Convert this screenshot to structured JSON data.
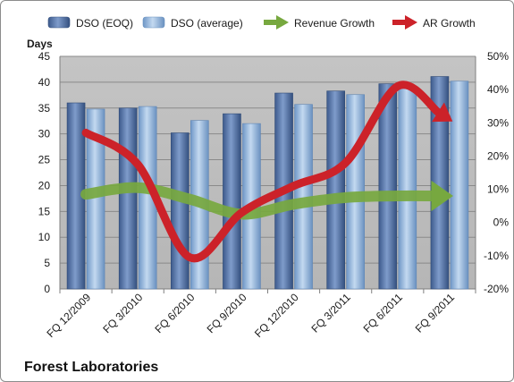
{
  "chart_data": {
    "type": "bar",
    "title": "Forest Laboratories",
    "categories": [
      "FQ 12/2009",
      "FQ 3/2010",
      "FQ 6/2010",
      "FQ 9/2010",
      "FQ 12/2010",
      "FQ 3/2011",
      "FQ 6/2011",
      "FQ 9/2011"
    ],
    "series": [
      {
        "name": "DSO (EOQ)",
        "type": "bar",
        "axis": "left",
        "values": [
          36.0,
          35.0,
          30.2,
          33.9,
          37.9,
          38.3,
          39.7,
          41.1
        ]
      },
      {
        "name": "DSO (average)",
        "type": "bar",
        "axis": "left",
        "values": [
          34.8,
          35.3,
          32.6,
          32.0,
          35.7,
          37.6,
          39.2,
          40.2
        ]
      },
      {
        "name": "Revenue Growth",
        "type": "line",
        "axis": "right",
        "unit": "%",
        "values": [
          8.5,
          10.5,
          7.0,
          2.5,
          5.5,
          7.5,
          8.0,
          8.0
        ]
      },
      {
        "name": "AR Growth",
        "type": "line",
        "axis": "right",
        "unit": "%",
        "values": [
          27.0,
          17.5,
          -10.5,
          3.0,
          11.0,
          18.0,
          41.0,
          31.0
        ]
      }
    ],
    "ylabel": "Days",
    "ylim": [
      0,
      45
    ],
    "yticks": [
      "0",
      "5",
      "10",
      "15",
      "20",
      "25",
      "30",
      "35",
      "40",
      "45"
    ],
    "y2lim": [
      -20,
      50
    ],
    "y2ticks": [
      "-20%",
      "-10%",
      "0%",
      "10%",
      "20%",
      "30%",
      "40%",
      "50%"
    ],
    "legend_position": "top",
    "grid": true,
    "colors": {
      "plot_background": "#bfbfbf",
      "bar_eoq": "#4f6fa3",
      "bar_avg": "#8fb3dc",
      "revenue_growth": "#77a83f",
      "ar_growth": "#cc2229"
    }
  }
}
